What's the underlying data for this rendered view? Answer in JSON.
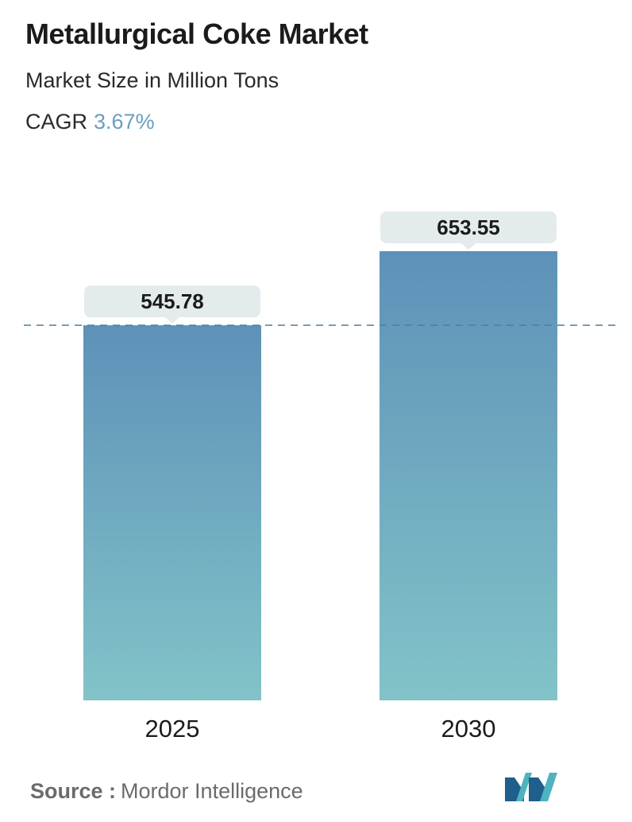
{
  "header": {
    "title": "Metallurgical Coke Market",
    "subtitle": "Market Size in Million Tons",
    "cagr_label": "CAGR",
    "cagr_value": "3.67%"
  },
  "footer": {
    "source_label": "Source :",
    "source_value": "Mordor Intelligence"
  },
  "colors": {
    "bar_top": "#5e91b8",
    "bar_bottom": "#82c3c8",
    "label_bg": "#e3ebed",
    "dashed_line": "#4a7fa3",
    "cagr_accent": "#6a9ec0",
    "logo_dark": "#1f5f8b",
    "logo_light": "#4fb3bf"
  },
  "chart_data": {
    "type": "bar",
    "categories": [
      "2025",
      "2030"
    ],
    "values": [
      545.78,
      653.55
    ],
    "value_labels": [
      "545.78",
      "653.55"
    ],
    "title": "Metallurgical Coke Market",
    "subtitle": "Market Size in Million Tons",
    "reference_line": "dashed line at the 2025 value"
  }
}
